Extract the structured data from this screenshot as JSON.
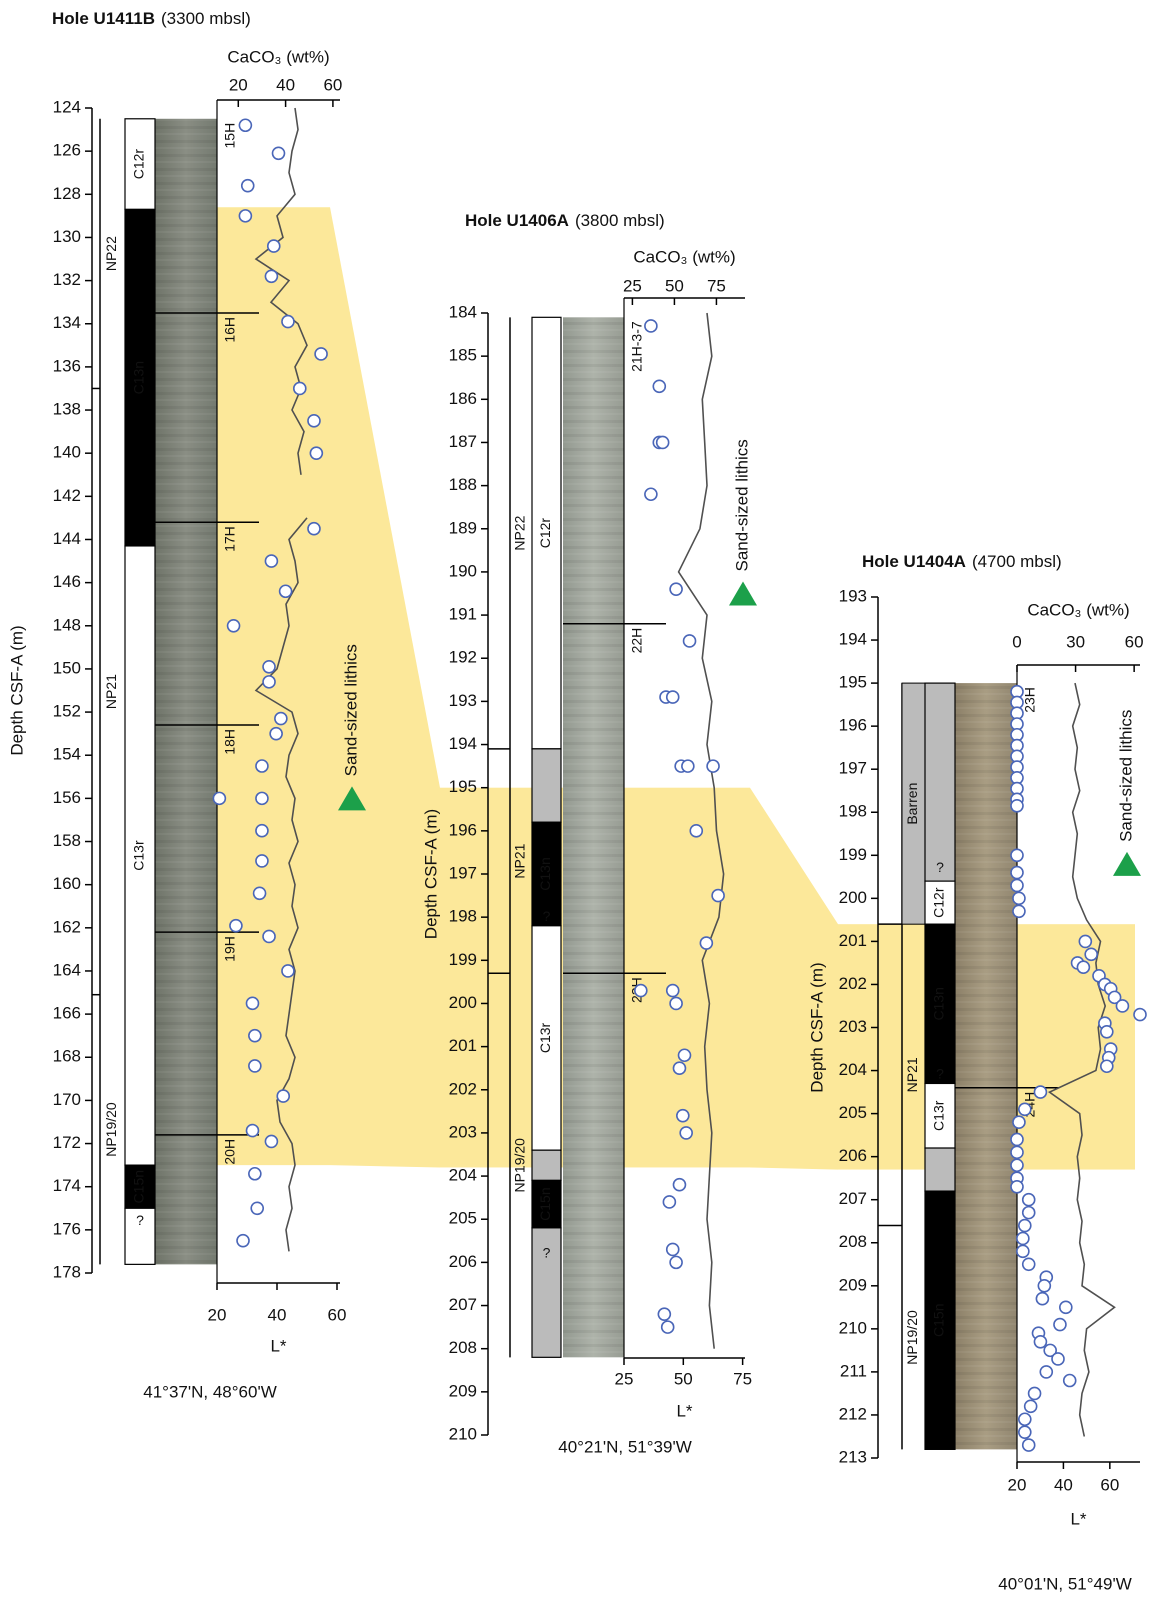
{
  "chart_data": [
    {
      "type": "core-log",
      "title": "Hole U1411B",
      "subtitle": "(3300 mbsl)",
      "y_label": "Depth CSF-A (m)",
      "ylim": [
        124,
        178
      ],
      "yticks": [
        124,
        126,
        128,
        130,
        132,
        134,
        136,
        138,
        140,
        142,
        144,
        146,
        148,
        150,
        152,
        154,
        156,
        158,
        160,
        162,
        164,
        166,
        168,
        170,
        172,
        174,
        176,
        178
      ],
      "x_label": "L*",
      "xlim": [
        20,
        61
      ],
      "xticks": [
        20,
        40,
        60
      ],
      "x2_label": "CaCO₃ (wt%)",
      "x2lim": [
        11,
        63
      ],
      "x2ticks": [
        20,
        40,
        60
      ],
      "location": "41°37'N, 48°60'W",
      "cored_interval": [
        124.5,
        177.6
      ],
      "caco3": {
        "color": "#4a66b8",
        "depth": [
          124.8,
          126.1,
          127.6,
          129.0,
          130.4,
          131.8,
          133.9,
          135.4,
          137.0,
          138.5,
          140.0,
          143.5,
          145.0,
          146.4,
          148.0,
          149.9,
          150.6,
          152.3,
          153.0,
          154.5,
          156.0,
          156.0,
          157.5,
          158.9,
          160.4,
          161.9,
          162.4,
          164.0,
          165.5,
          167.0,
          168.4,
          169.8,
          171.4,
          171.9,
          173.4,
          175.0,
          176.5
        ],
        "values": [
          23,
          37,
          24,
          23,
          35,
          34,
          41,
          55,
          46,
          52,
          53,
          52,
          34,
          40,
          18,
          33,
          33,
          38,
          36,
          30,
          12,
          30,
          30,
          30,
          29,
          19,
          33,
          41,
          26,
          27,
          27,
          39,
          26,
          34,
          27,
          28,
          22
        ]
      },
      "lstar": {
        "color": "#505050",
        "depth": [
          124,
          125,
          126,
          127,
          128,
          129,
          130,
          131,
          132,
          133,
          134,
          135,
          136,
          137,
          138,
          139,
          140,
          141,
          142,
          143,
          144,
          145,
          146,
          147,
          148,
          149,
          150,
          151,
          152,
          153,
          154,
          155,
          156,
          157,
          158,
          159,
          160,
          161,
          162,
          163,
          164,
          165,
          166,
          167,
          168,
          169,
          170,
          171,
          172,
          173,
          174,
          175,
          176,
          177
        ],
        "values": [
          46,
          47,
          45,
          44,
          46,
          40,
          42,
          33,
          44,
          38,
          47,
          50,
          46,
          48,
          45,
          49,
          47,
          48,
          null,
          50,
          44,
          46,
          47,
          43,
          44,
          42,
          40,
          33,
          45,
          47,
          44,
          43,
          46,
          45,
          47,
          44,
          46,
          45,
          47,
          44,
          46,
          45,
          44,
          43,
          46,
          44,
          40,
          41,
          45,
          46,
          44,
          45,
          43,
          44
        ]
      },
      "zones": [
        {
          "label": "NP22",
          "top": 124.5,
          "base": 137
        },
        {
          "label": "NP21",
          "top": 137,
          "base": 165.1
        },
        {
          "label": "NP19/20",
          "top": 165.1,
          "base": 177.6
        }
      ],
      "chrons": [
        {
          "label": "C12r",
          "top": 124.5,
          "base": 128.7,
          "color": "#ffffff"
        },
        {
          "label": "C13n",
          "top": 128.7,
          "base": 144.3,
          "color": "#000000"
        },
        {
          "label": "C13r",
          "top": 144.3,
          "base": 173,
          "color": "#ffffff"
        },
        {
          "label": "C15n",
          "top": 173,
          "base": 175,
          "color": "#000000"
        },
        {
          "label": null,
          "top": 175,
          "base": 177.6,
          "color": "#ffffff"
        }
      ],
      "uncertain": [
        {
          "label": "?",
          "depth": 175.6
        }
      ],
      "cores": [
        {
          "label": "15H",
          "depth": 124.5
        },
        {
          "label": "16H",
          "depth": 133.5
        },
        {
          "label": "17H",
          "depth": 143.2
        },
        {
          "label": "18H",
          "depth": 152.6
        },
        {
          "label": "19H",
          "depth": 162.2
        },
        {
          "label": "20H",
          "depth": 171.6
        }
      ],
      "highlight": {
        "top": 128.6,
        "base": 173,
        "color": "#fce89a"
      },
      "annotation": {
        "text": "Sand-sized lithics",
        "depth": 156,
        "color": "#1ca04a"
      }
    },
    {
      "type": "core-log",
      "title": "Hole U1406A",
      "subtitle": "(3800 mbsl)",
      "y_label": "Depth CSF-A (m)",
      "ylim": [
        184,
        210
      ],
      "yticks": [
        184,
        185,
        186,
        187,
        188,
        189,
        190,
        191,
        192,
        193,
        194,
        195,
        196,
        197,
        198,
        199,
        200,
        201,
        202,
        203,
        204,
        205,
        206,
        207,
        208,
        209,
        210
      ],
      "x_label": "L*",
      "xlim": [
        25,
        76
      ],
      "xticks": [
        25,
        50,
        75
      ],
      "x2_label": "CaCO₃ (wt%)",
      "x2lim": [
        20,
        92
      ],
      "x2ticks": [
        25,
        50,
        75
      ],
      "location": "40°21'N, 51°39'W",
      "cored_interval": [
        184.1,
        208.2
      ],
      "caco3": {
        "color": "#4a66b8",
        "depth": [
          184.3,
          185.7,
          187.0,
          187.0,
          188.2,
          190.4,
          191.6,
          192.9,
          192.9,
          194.5,
          194.5,
          194.5,
          196.0,
          197.5,
          198.6,
          199.7,
          199.7,
          200.0,
          201.2,
          201.5,
          202.6,
          203.0,
          204.2,
          204.6,
          205.7,
          206.0,
          207.2,
          207.5
        ],
        "values": [
          36,
          41,
          41,
          43,
          36,
          51,
          59,
          45,
          49,
          54,
          58,
          73,
          63,
          76,
          69,
          30,
          49,
          51,
          56,
          53,
          55,
          57,
          53,
          47,
          49,
          51,
          44,
          46
        ]
      },
      "lstar": {
        "color": "#505050",
        "depth": [
          184,
          185,
          186,
          187,
          188,
          189,
          190,
          191,
          192,
          193,
          194,
          195,
          196,
          197,
          198,
          199,
          200,
          201,
          202,
          203,
          204,
          205,
          206,
          207,
          208
        ],
        "values": [
          60,
          62,
          58,
          59,
          60,
          57,
          48,
          60,
          58,
          62,
          60,
          63,
          64,
          67,
          65,
          58,
          61,
          59,
          60,
          62,
          61,
          60,
          62,
          61,
          63
        ]
      },
      "zones": [
        {
          "label": "NP22",
          "top": 184.1,
          "base": 194.1
        },
        {
          "label": "NP21",
          "top": 194.1,
          "base": 199.3
        },
        {
          "label": "NP19/20",
          "top": 199.3,
          "base": 208.2
        }
      ],
      "chrons": [
        {
          "label": "C12r",
          "top": 184.1,
          "base": 194.1,
          "color": "#ffffff"
        },
        {
          "label": null,
          "top": 194.1,
          "base": 195.8,
          "color": "#bbbbbb"
        },
        {
          "label": "C13n",
          "top": 195.8,
          "base": 198.2,
          "color": "#000000"
        },
        {
          "label": "C13r",
          "top": 198.2,
          "base": 203.4,
          "color": "#ffffff"
        },
        {
          "label": null,
          "top": 203.4,
          "base": 204.1,
          "color": "#bbbbbb"
        },
        {
          "label": "C15n",
          "top": 204.1,
          "base": 205.2,
          "color": "#000000"
        },
        {
          "label": null,
          "top": 205.2,
          "base": 208.2,
          "color": "#bbbbbb"
        }
      ],
      "uncertain": [
        {
          "label": "?",
          "depth": 198
        },
        {
          "label": "?",
          "depth": 205.8
        }
      ],
      "cores": [
        {
          "label": "21H-3-7",
          "depth": 184.1
        },
        {
          "label": "22H",
          "depth": 191.2
        },
        {
          "label": "23H",
          "depth": 199.3
        }
      ],
      "highlight": {
        "top": 195,
        "base": 203.8,
        "color": "#fce89a"
      },
      "annotation": {
        "text": "Sand-sized lithics",
        "depth": 190.5,
        "color": "#1ca04a"
      }
    },
    {
      "type": "core-log",
      "title": "Hole U1404A",
      "subtitle": "(4700 mbsl)",
      "y_label": "Depth CSF-A (m)",
      "ylim": [
        193,
        213
      ],
      "yticks": [
        193,
        194,
        195,
        196,
        197,
        198,
        199,
        200,
        201,
        202,
        203,
        204,
        205,
        206,
        207,
        208,
        209,
        210,
        211,
        212,
        213
      ],
      "x_label": "L*",
      "xlim": [
        20,
        73
      ],
      "xticks": [
        20,
        40,
        60
      ],
      "x2_label": "CaCO₃ (wt%)",
      "x2lim": [
        0,
        63
      ],
      "x2ticks": [
        0,
        30,
        60
      ],
      "location": "40°01'N, 51°49'W",
      "cored_interval": [
        195,
        212.8
      ],
      "caco3": {
        "color": "#4a66b8",
        "depth": [
          195.2,
          195.45,
          195.7,
          195.95,
          196.2,
          196.45,
          196.7,
          196.95,
          197.2,
          197.45,
          197.7,
          197.85,
          199.0,
          199.4,
          199.7,
          200.0,
          200.3,
          201.0,
          201.3,
          201.5,
          201.6,
          201.8,
          202.0,
          202.1,
          202.3,
          202.5,
          202.7,
          202.9,
          203.1,
          203.5,
          203.7,
          203.9,
          204.5,
          204.9,
          205.2,
          205.6,
          205.9,
          206.2,
          206.5,
          206.7,
          207.0,
          207.3,
          207.6,
          207.9,
          208.2,
          208.5,
          208.8,
          209.0,
          209.3,
          209.5,
          209.9,
          210.1,
          210.3,
          210.5,
          210.7,
          211.0,
          211.2,
          211.5,
          211.8,
          212.1,
          212.4,
          212.7
        ],
        "values": [
          0,
          0,
          0,
          0,
          0,
          0,
          0,
          0,
          0,
          0,
          0,
          0,
          0,
          0,
          0,
          1,
          1,
          35,
          38,
          31,
          34,
          42,
          45,
          48,
          50,
          54,
          63,
          45,
          46,
          48,
          47,
          46,
          12,
          4,
          1,
          0,
          0,
          0,
          0,
          0,
          6,
          6,
          4,
          3,
          3,
          6,
          15,
          14,
          13,
          25,
          22,
          11,
          12,
          17,
          21,
          15,
          27,
          9,
          7,
          4,
          4,
          6
        ]
      },
      "lstar": {
        "color": "#505050",
        "depth": [
          195,
          195.5,
          196,
          196.5,
          197,
          197.5,
          198,
          198.5,
          199,
          199.5,
          200,
          200.5,
          201,
          201.5,
          202,
          202.5,
          203,
          203.5,
          204,
          204.5,
          205,
          205.5,
          206,
          206.5,
          207,
          207.5,
          208,
          208.5,
          209,
          209.5,
          210,
          210.5,
          211,
          211.5,
          212,
          212.5
        ],
        "values": [
          45,
          47,
          44,
          46,
          45,
          47,
          44,
          46,
          45,
          44,
          46,
          50,
          56,
          54,
          55,
          58,
          55,
          56,
          54,
          34,
          47,
          48,
          46,
          47,
          46,
          48,
          47,
          49,
          48,
          62,
          50,
          49,
          51,
          48,
          47,
          49
        ]
      },
      "zones": [
        {
          "label": "Barren",
          "top": 195,
          "base": 200.6,
          "color": "#bbbbbb"
        },
        {
          "label": "NP21",
          "top": 200.6,
          "base": 207.6
        },
        {
          "label": "NP19/20",
          "top": 207.6,
          "base": 212.8
        }
      ],
      "chrons": [
        {
          "label": null,
          "top": 195,
          "base": 199.6,
          "color": "#bbbbbb"
        },
        {
          "label": "C12r",
          "top": 199.6,
          "base": 200.6,
          "color": "#ffffff"
        },
        {
          "label": "C13n",
          "top": 200.6,
          "base": 204.3,
          "color": "#000000"
        },
        {
          "label": "C13r",
          "top": 204.3,
          "base": 205.8,
          "color": "#ffffff"
        },
        {
          "label": null,
          "top": 205.8,
          "base": 206.8,
          "color": "#bbbbbb"
        },
        {
          "label": "C15n",
          "top": 206.8,
          "base": 212.8,
          "color": "#000000"
        }
      ],
      "uncertain": [
        {
          "label": "?",
          "depth": 199.3
        },
        {
          "label": "?",
          "depth": 204.1
        }
      ],
      "cores": [
        {
          "label": "23H",
          "depth": 195
        },
        {
          "label": "24H",
          "depth": 204.4
        }
      ],
      "highlight": {
        "top": 200.6,
        "base": 206.3,
        "color": "#fce89a"
      },
      "annotation": {
        "text": "Sand-sized lithics",
        "depth": 199.2,
        "color": "#1ca04a"
      }
    }
  ]
}
